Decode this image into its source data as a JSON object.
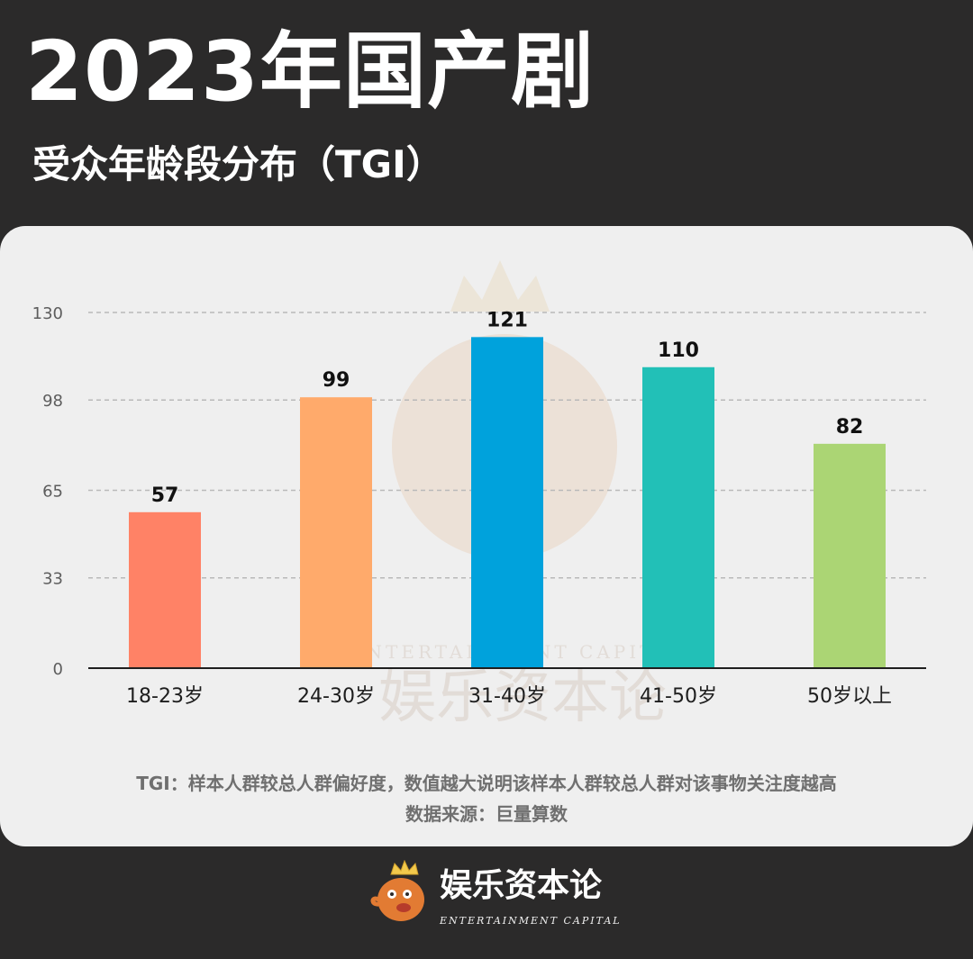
{
  "header": {
    "title": "2023年国产剧",
    "subtitle": "受众年龄段分布（TGI）"
  },
  "notes": {
    "line1": "TGI：样本人群较总人群偏好度，数值越大说明该样本人群较总人群对该事物关注度越高",
    "line2": "数据来源：巨量算数"
  },
  "brand": {
    "name": "娱乐资本论",
    "subtitle": "ENTERTAINMENT CAPITAL",
    "watermark_name": "娱乐资本论",
    "watermark_sub": "ENTERTAINMENT CAPITAL"
  },
  "colors": {
    "page_bg": "#2b2a2a",
    "card_bg": "#efefef",
    "axis": "#1f1f1f",
    "grid": "#b9b9b9",
    "tick": "#5d5d5d"
  },
  "chart_data": {
    "type": "bar",
    "categories": [
      "18-23岁",
      "24-30岁",
      "31-40岁",
      "41-50岁",
      "50岁以上"
    ],
    "values": [
      57,
      99,
      121,
      110,
      82
    ],
    "colors": [
      "#ff8266",
      "#ffaa6b",
      "#00a2dc",
      "#22c0b7",
      "#abd574"
    ],
    "y_ticks": [
      0,
      33,
      65,
      98,
      130
    ],
    "ylim": [
      0,
      130
    ],
    "grid": true,
    "legend": "none"
  }
}
